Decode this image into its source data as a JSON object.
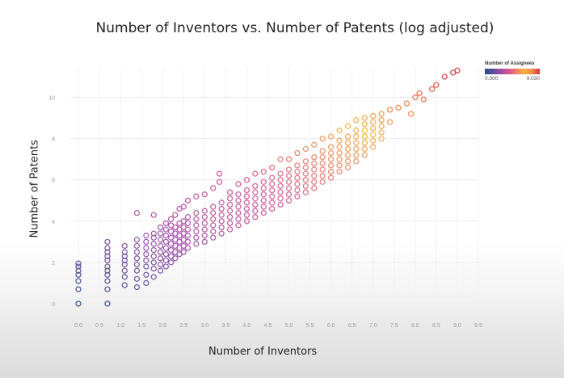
{
  "chart_data": {
    "type": "scatter",
    "title": "Number of Inventors vs. Number of Patents (log adjusted)",
    "xlabel": "Number of Inventors",
    "ylabel": "Number of Patents",
    "xlim": [
      0,
      9.5
    ],
    "ylim": [
      0,
      11
    ],
    "xticks": [
      "0.0",
      "0.5",
      "1.0",
      "1.5",
      "2.0",
      "2.5",
      "3.0",
      "3.5",
      "4.0",
      "4.5",
      "5.0",
      "5.5",
      "6.0",
      "6.5",
      "7.0",
      "7.5",
      "8.0",
      "8.5",
      "9.0",
      "9.5"
    ],
    "yticks": [
      "0",
      "2",
      "4",
      "6",
      "8",
      "10"
    ],
    "grid": true,
    "color_legend": {
      "title": "Number of Assignees",
      "min_label": "0.000",
      "max_label": "9.030",
      "placement": "top-right",
      "colors": [
        "#2b4a86",
        "#9a4fa8",
        "#d9538f",
        "#f7b23e",
        "#d72f45"
      ]
    },
    "points": [
      [
        0.0,
        0.0
      ],
      [
        0.0,
        0.7
      ],
      [
        0.0,
        1.1
      ],
      [
        0.0,
        1.4
      ],
      [
        0.0,
        1.6
      ],
      [
        0.0,
        1.8
      ],
      [
        0.0,
        1.95
      ],
      [
        0.69,
        0.0
      ],
      [
        0.69,
        0.7
      ],
      [
        0.69,
        1.1
      ],
      [
        0.69,
        1.4
      ],
      [
        0.69,
        1.6
      ],
      [
        0.69,
        1.8
      ],
      [
        0.69,
        2.1
      ],
      [
        0.69,
        2.3
      ],
      [
        0.69,
        2.5
      ],
      [
        0.69,
        2.7
      ],
      [
        0.69,
        3.0
      ],
      [
        1.1,
        0.9
      ],
      [
        1.1,
        1.3
      ],
      [
        1.1,
        1.6
      ],
      [
        1.1,
        1.9
      ],
      [
        1.1,
        2.1
      ],
      [
        1.1,
        2.3
      ],
      [
        1.1,
        2.5
      ],
      [
        1.1,
        2.8
      ],
      [
        1.39,
        0.8
      ],
      [
        1.39,
        1.2
      ],
      [
        1.39,
        1.6
      ],
      [
        1.39,
        1.9
      ],
      [
        1.39,
        2.2
      ],
      [
        1.39,
        2.5
      ],
      [
        1.39,
        2.8
      ],
      [
        1.39,
        3.1
      ],
      [
        1.39,
        4.4
      ],
      [
        1.61,
        1.0
      ],
      [
        1.61,
        1.4
      ],
      [
        1.61,
        1.8
      ],
      [
        1.61,
        2.1
      ],
      [
        1.61,
        2.4
      ],
      [
        1.61,
        2.7
      ],
      [
        1.61,
        3.0
      ],
      [
        1.61,
        3.3
      ],
      [
        1.79,
        1.3
      ],
      [
        1.79,
        1.7
      ],
      [
        1.79,
        2.0
      ],
      [
        1.79,
        2.3
      ],
      [
        1.79,
        2.6
      ],
      [
        1.79,
        2.9
      ],
      [
        1.79,
        3.2
      ],
      [
        1.79,
        3.4
      ],
      [
        1.79,
        4.3
      ],
      [
        1.95,
        1.6
      ],
      [
        1.95,
        1.9
      ],
      [
        1.95,
        2.2
      ],
      [
        1.95,
        2.5
      ],
      [
        1.95,
        2.8
      ],
      [
        1.95,
        3.1
      ],
      [
        1.95,
        3.4
      ],
      [
        1.95,
        3.7
      ],
      [
        2.08,
        1.8
      ],
      [
        2.08,
        2.1
      ],
      [
        2.08,
        2.4
      ],
      [
        2.08,
        2.7
      ],
      [
        2.08,
        3.0
      ],
      [
        2.08,
        3.3
      ],
      [
        2.08,
        3.6
      ],
      [
        2.08,
        3.9
      ],
      [
        2.2,
        2.0
      ],
      [
        2.2,
        2.3
      ],
      [
        2.2,
        2.6
      ],
      [
        2.2,
        2.9
      ],
      [
        2.2,
        3.2
      ],
      [
        2.2,
        3.5
      ],
      [
        2.2,
        3.8
      ],
      [
        2.2,
        4.1
      ],
      [
        2.3,
        2.2
      ],
      [
        2.3,
        2.5
      ],
      [
        2.3,
        2.8
      ],
      [
        2.3,
        3.1
      ],
      [
        2.3,
        3.4
      ],
      [
        2.3,
        3.7
      ],
      [
        2.3,
        4.3
      ],
      [
        2.4,
        2.4
      ],
      [
        2.4,
        2.7
      ],
      [
        2.4,
        3.0
      ],
      [
        2.4,
        3.3
      ],
      [
        2.4,
        3.6
      ],
      [
        2.4,
        3.9
      ],
      [
        2.4,
        4.6
      ],
      [
        2.5,
        2.5
      ],
      [
        2.5,
        2.8
      ],
      [
        2.5,
        3.1
      ],
      [
        2.5,
        3.4
      ],
      [
        2.5,
        3.7
      ],
      [
        2.5,
        4.0
      ],
      [
        2.5,
        4.7
      ],
      [
        2.6,
        2.7
      ],
      [
        2.6,
        3.0
      ],
      [
        2.6,
        3.3
      ],
      [
        2.6,
        3.6
      ],
      [
        2.6,
        3.9
      ],
      [
        2.6,
        4.2
      ],
      [
        2.6,
        5.0
      ],
      [
        2.8,
        2.9
      ],
      [
        2.8,
        3.2
      ],
      [
        2.8,
        3.5
      ],
      [
        2.8,
        3.8
      ],
      [
        2.8,
        4.1
      ],
      [
        2.8,
        4.4
      ],
      [
        2.8,
        5.2
      ],
      [
        3.0,
        3.0
      ],
      [
        3.0,
        3.3
      ],
      [
        3.0,
        3.6
      ],
      [
        3.0,
        3.9
      ],
      [
        3.0,
        4.2
      ],
      [
        3.0,
        4.5
      ],
      [
        3.0,
        5.3
      ],
      [
        3.2,
        3.2
      ],
      [
        3.2,
        3.5
      ],
      [
        3.2,
        3.8
      ],
      [
        3.2,
        4.1
      ],
      [
        3.2,
        4.4
      ],
      [
        3.2,
        4.7
      ],
      [
        3.2,
        5.6
      ],
      [
        3.35,
        6.3
      ],
      [
        3.35,
        5.9
      ],
      [
        3.4,
        3.4
      ],
      [
        3.4,
        3.7
      ],
      [
        3.4,
        4.0
      ],
      [
        3.4,
        4.3
      ],
      [
        3.4,
        4.6
      ],
      [
        3.4,
        4.9
      ],
      [
        3.6,
        3.6
      ],
      [
        3.6,
        3.9
      ],
      [
        3.6,
        4.2
      ],
      [
        3.6,
        4.5
      ],
      [
        3.6,
        4.8
      ],
      [
        3.6,
        5.1
      ],
      [
        3.6,
        5.4
      ],
      [
        3.8,
        3.8
      ],
      [
        3.8,
        4.1
      ],
      [
        3.8,
        4.4
      ],
      [
        3.8,
        4.7
      ],
      [
        3.8,
        5.0
      ],
      [
        3.8,
        5.3
      ],
      [
        3.8,
        5.8
      ],
      [
        4.0,
        4.0
      ],
      [
        4.0,
        4.3
      ],
      [
        4.0,
        4.6
      ],
      [
        4.0,
        4.9
      ],
      [
        4.0,
        5.2
      ],
      [
        4.0,
        5.5
      ],
      [
        4.0,
        6.0
      ],
      [
        4.2,
        4.2
      ],
      [
        4.2,
        4.5
      ],
      [
        4.2,
        4.8
      ],
      [
        4.2,
        5.1
      ],
      [
        4.2,
        5.4
      ],
      [
        4.2,
        5.7
      ],
      [
        4.2,
        6.3
      ],
      [
        4.4,
        4.4
      ],
      [
        4.4,
        4.7
      ],
      [
        4.4,
        5.0
      ],
      [
        4.4,
        5.3
      ],
      [
        4.4,
        5.6
      ],
      [
        4.4,
        5.9
      ],
      [
        4.4,
        6.4
      ],
      [
        4.6,
        4.6
      ],
      [
        4.6,
        4.9
      ],
      [
        4.6,
        5.2
      ],
      [
        4.6,
        5.5
      ],
      [
        4.6,
        5.8
      ],
      [
        4.6,
        6.1
      ],
      [
        4.6,
        6.6
      ],
      [
        4.8,
        4.8
      ],
      [
        4.8,
        5.1
      ],
      [
        4.8,
        5.4
      ],
      [
        4.8,
        5.7
      ],
      [
        4.8,
        6.0
      ],
      [
        4.8,
        6.3
      ],
      [
        4.8,
        7.0
      ],
      [
        5.0,
        5.0
      ],
      [
        5.0,
        5.3
      ],
      [
        5.0,
        5.6
      ],
      [
        5.0,
        5.9
      ],
      [
        5.0,
        6.2
      ],
      [
        5.0,
        6.5
      ],
      [
        5.0,
        7.0
      ],
      [
        5.2,
        5.2
      ],
      [
        5.2,
        5.5
      ],
      [
        5.2,
        5.8
      ],
      [
        5.2,
        6.1
      ],
      [
        5.2,
        6.4
      ],
      [
        5.2,
        6.7
      ],
      [
        5.2,
        7.3
      ],
      [
        5.4,
        5.4
      ],
      [
        5.4,
        5.7
      ],
      [
        5.4,
        6.0
      ],
      [
        5.4,
        6.3
      ],
      [
        5.4,
        6.6
      ],
      [
        5.4,
        6.9
      ],
      [
        5.4,
        7.5
      ],
      [
        5.6,
        5.6
      ],
      [
        5.6,
        5.9
      ],
      [
        5.6,
        6.2
      ],
      [
        5.6,
        6.5
      ],
      [
        5.6,
        6.8
      ],
      [
        5.6,
        7.1
      ],
      [
        5.6,
        7.7
      ],
      [
        5.8,
        5.9
      ],
      [
        5.8,
        6.2
      ],
      [
        5.8,
        6.5
      ],
      [
        5.8,
        6.8
      ],
      [
        5.8,
        7.1
      ],
      [
        5.8,
        7.4
      ],
      [
        5.8,
        8.0
      ],
      [
        6.0,
        6.1
      ],
      [
        6.0,
        6.4
      ],
      [
        6.0,
        6.7
      ],
      [
        6.0,
        7.0
      ],
      [
        6.0,
        7.3
      ],
      [
        6.0,
        7.6
      ],
      [
        6.0,
        8.1
      ],
      [
        6.2,
        6.4
      ],
      [
        6.2,
        6.7
      ],
      [
        6.2,
        7.0
      ],
      [
        6.2,
        7.3
      ],
      [
        6.2,
        7.6
      ],
      [
        6.2,
        7.9
      ],
      [
        6.2,
        8.4
      ],
      [
        6.4,
        6.6
      ],
      [
        6.4,
        6.9
      ],
      [
        6.4,
        7.2
      ],
      [
        6.4,
        7.5
      ],
      [
        6.4,
        7.8
      ],
      [
        6.4,
        8.1
      ],
      [
        6.4,
        8.6
      ],
      [
        6.6,
        6.9
      ],
      [
        6.6,
        7.2
      ],
      [
        6.6,
        7.5
      ],
      [
        6.6,
        7.8
      ],
      [
        6.6,
        8.1
      ],
      [
        6.6,
        8.4
      ],
      [
        6.6,
        8.9
      ],
      [
        6.8,
        7.2
      ],
      [
        6.8,
        7.5
      ],
      [
        6.8,
        7.8
      ],
      [
        6.8,
        8.1
      ],
      [
        6.8,
        8.4
      ],
      [
        6.8,
        8.7
      ],
      [
        6.8,
        9.0
      ],
      [
        7.0,
        7.6
      ],
      [
        7.0,
        7.9
      ],
      [
        7.0,
        8.2
      ],
      [
        7.0,
        8.5
      ],
      [
        7.0,
        8.8
      ],
      [
        7.0,
        9.1
      ],
      [
        7.2,
        8.0
      ],
      [
        7.2,
        8.3
      ],
      [
        7.2,
        8.6
      ],
      [
        7.2,
        8.9
      ],
      [
        7.2,
        9.2
      ],
      [
        7.4,
        8.8
      ],
      [
        7.4,
        9.4
      ],
      [
        7.6,
        9.5
      ],
      [
        7.8,
        9.7
      ],
      [
        7.9,
        9.2
      ],
      [
        8.0,
        10.0
      ],
      [
        8.1,
        10.2
      ],
      [
        8.2,
        9.9
      ],
      [
        8.4,
        10.4
      ],
      [
        8.5,
        10.6
      ],
      [
        8.7,
        11.0
      ],
      [
        8.9,
        11.2
      ],
      [
        9.0,
        11.3
      ]
    ]
  }
}
